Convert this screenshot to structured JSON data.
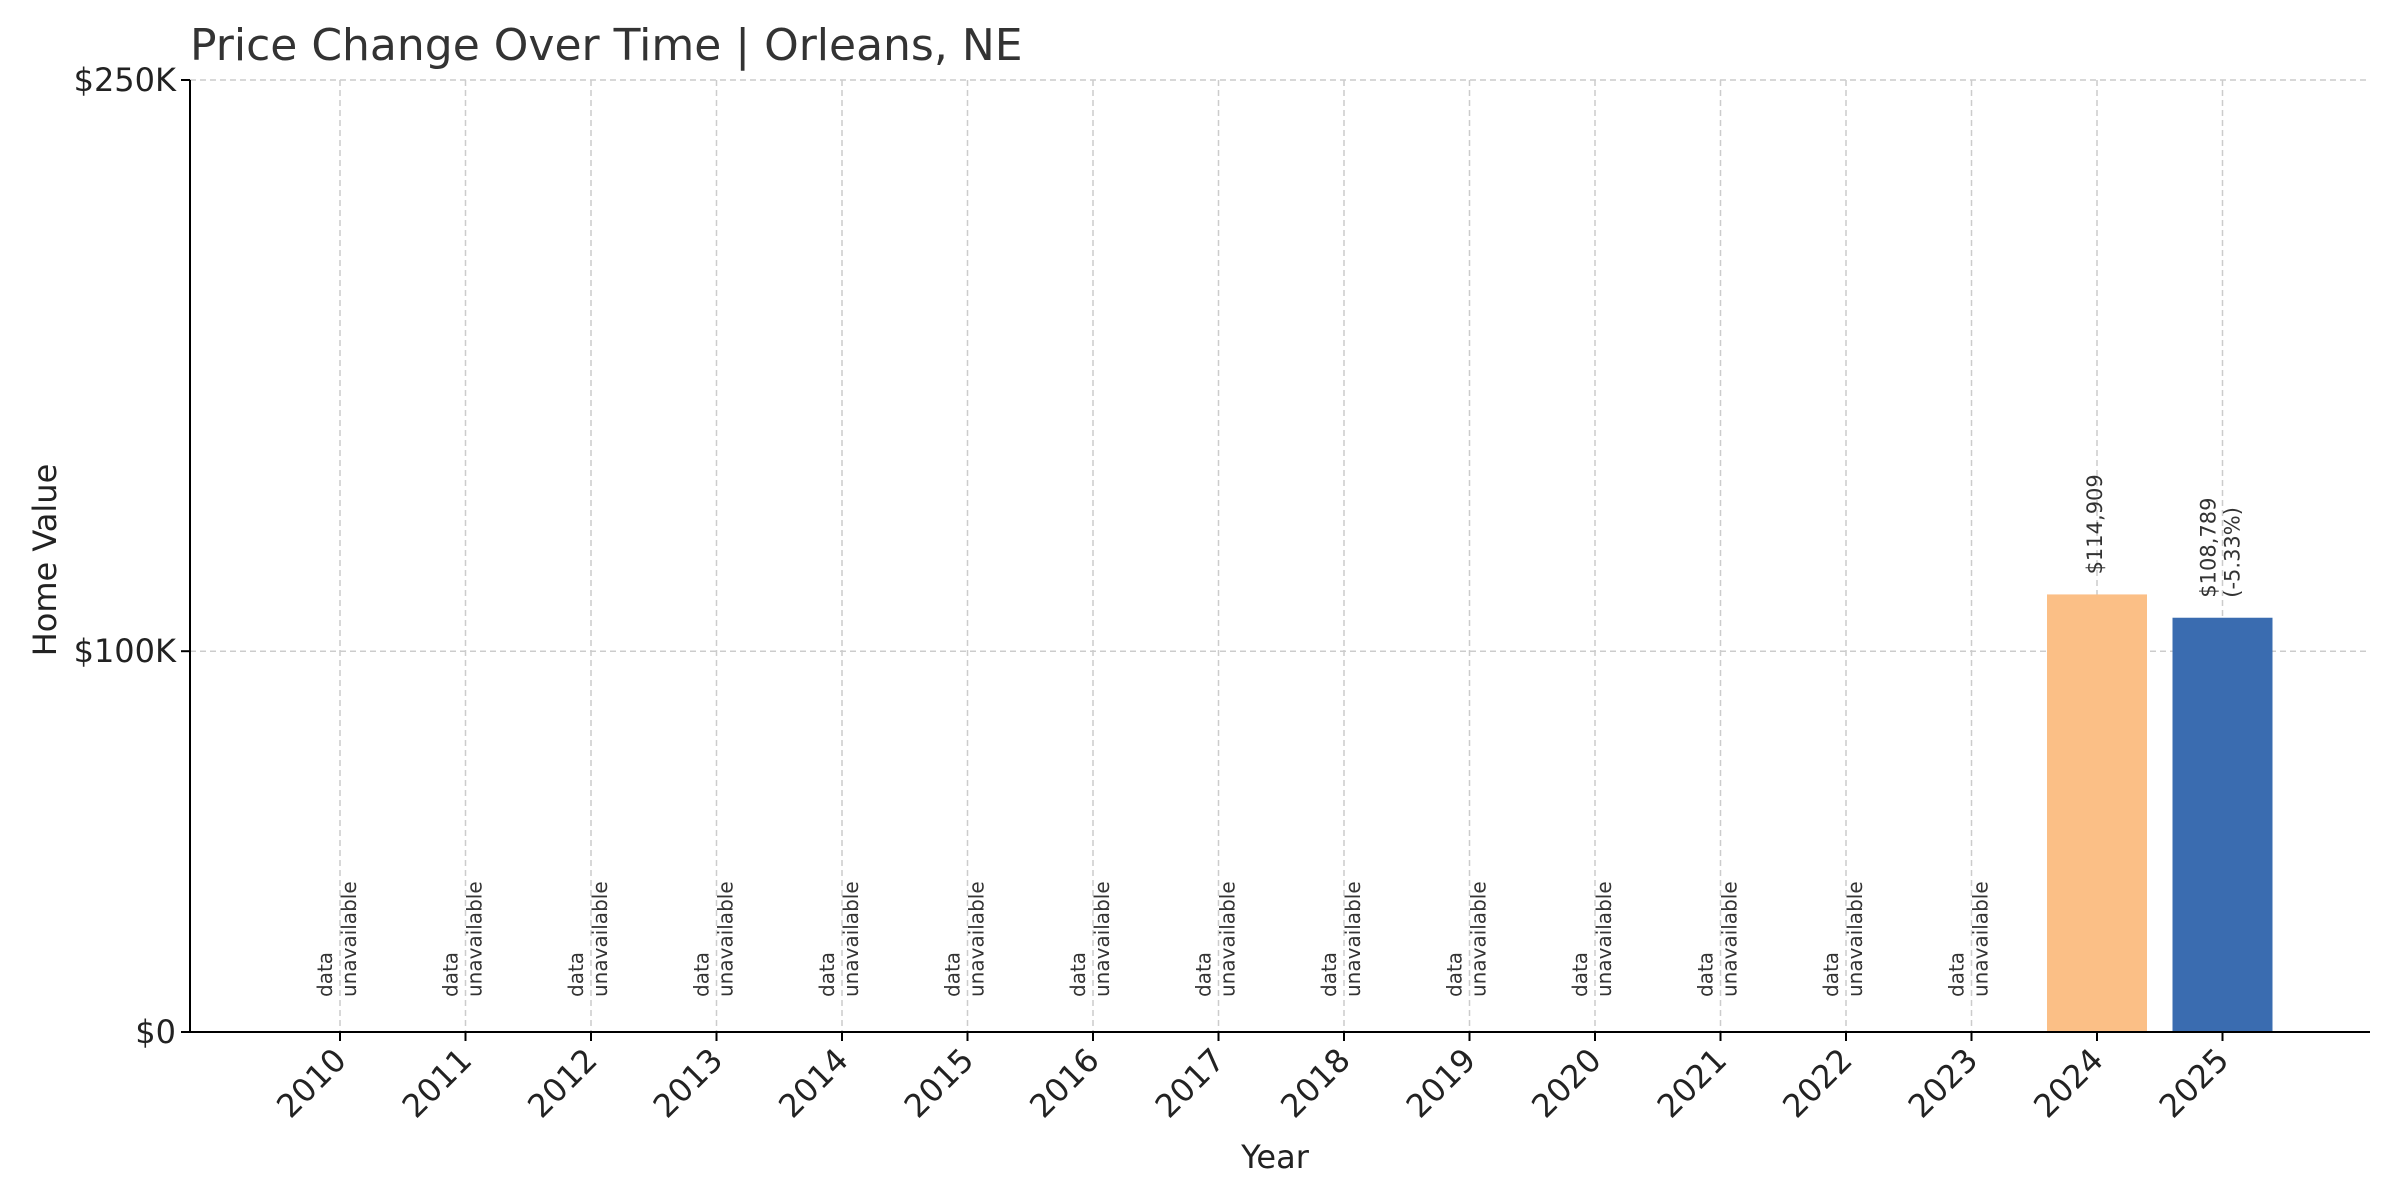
{
  "chart_data": {
    "type": "bar",
    "title": "Price Change Over Time | Orleans, NE",
    "xlabel": "Year",
    "ylabel": "Home Value",
    "ylim": [
      0,
      250000
    ],
    "yticks": [
      {
        "value": 0,
        "label": "$0"
      },
      {
        "value": 100000,
        "label": "$100K"
      },
      {
        "value": 250000,
        "label": "$250K"
      }
    ],
    "categories": [
      "2010",
      "2011",
      "2012",
      "2013",
      "2014",
      "2015",
      "2016",
      "2017",
      "2018",
      "2019",
      "2020",
      "2021",
      "2022",
      "2023",
      "2024",
      "2025"
    ],
    "values": [
      null,
      null,
      null,
      null,
      null,
      null,
      null,
      null,
      null,
      null,
      null,
      null,
      null,
      null,
      114909,
      108789
    ],
    "bar_colors": {
      "2024": "#fbbf86",
      "2025": "#3a6cb0"
    },
    "unavailable_label": [
      "data",
      "unavailable"
    ],
    "data_labels": {
      "2024": [
        "$114,909"
      ],
      "2025": [
        "$108,789",
        "(-5.33%)"
      ]
    },
    "grid": true,
    "colors": {
      "grid": "#cccccc",
      "axis": "#000000",
      "title": "#333333"
    }
  }
}
